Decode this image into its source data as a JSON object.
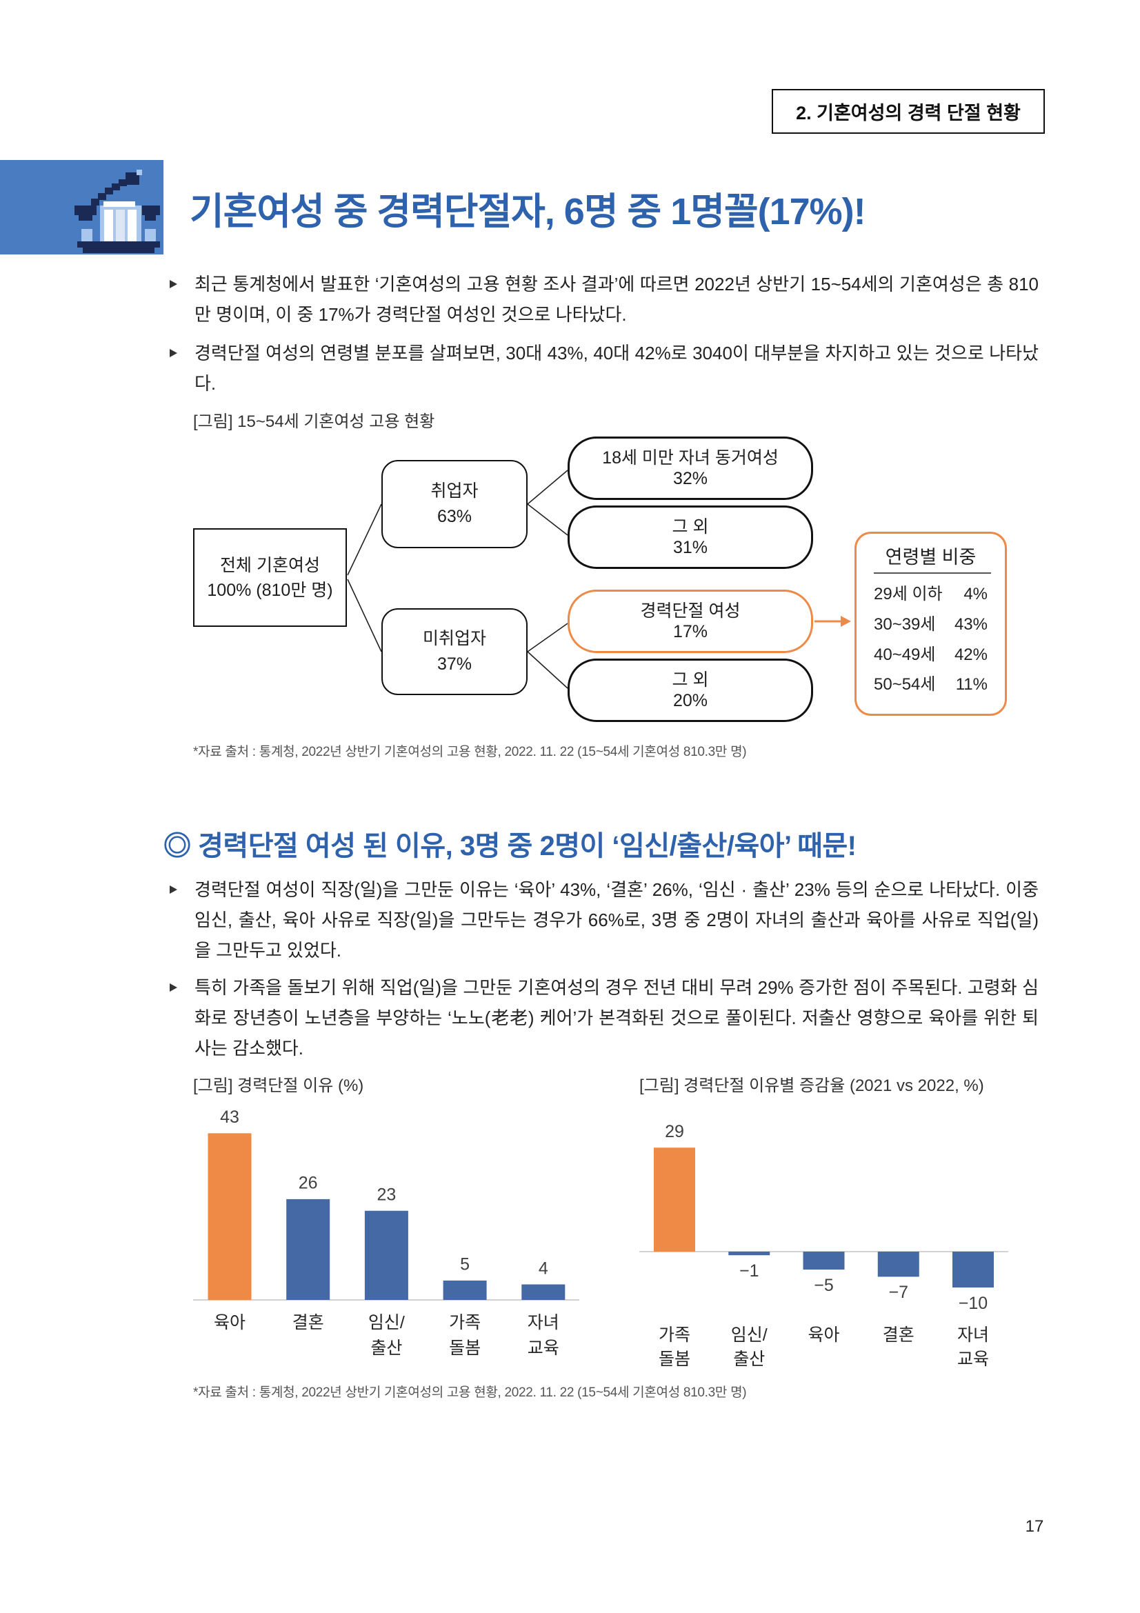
{
  "section_tag": "2. 기혼여성의 경력 단절 현황",
  "header_icon": "chart-growth-icon",
  "colors": {
    "title_blue": "#2f62ac",
    "bar_blue": "#4569a5",
    "accent_orange": "#ef8a46",
    "icon_block_blue": "#4a7cc2"
  },
  "title": "기혼여성 중 경력단절자, 6명 중 1명꼴(17%)!",
  "section1": {
    "bullets": [
      "최근 통계청에서 발표한 ‘기혼여성의 고용 현황 조사 결과’에 따르면 2022년 상반기 15~54세의 기혼여성은 총 810만 명이며, 이 중 17%가 경력단절 여성인 것으로 나타났다.",
      "경력단절 여성의 연령별 분포를 살펴보면, 30대 43%, 40대 42%로 3040이 대부분을 차지하고 있는 것으로 나타났다."
    ]
  },
  "figure1": {
    "caption": "[그림] 15~54세 기혼여성 고용 현황",
    "root": {
      "label": "전체 기혼여성",
      "value": "100% (810만 명)"
    },
    "employed": {
      "label": "취업자",
      "value": "63%"
    },
    "unemployed": {
      "label": "미취업자",
      "value": "37%"
    },
    "employed_children": {
      "label": "18세 미만 자녀 동거여성",
      "value": "32%"
    },
    "employed_other": {
      "label": "그 외",
      "value": "31%"
    },
    "career_break": {
      "label": "경력단절 여성",
      "value": "17%"
    },
    "unemployed_other": {
      "label": "그 외",
      "value": "20%"
    },
    "age_box": {
      "title": "연령별 비중",
      "rows": [
        {
          "age": "29세 이하",
          "share": "4%"
        },
        {
          "age": "30~39세",
          "share": "43%"
        },
        {
          "age": "40~49세",
          "share": "42%"
        },
        {
          "age": "50~54세",
          "share": "11%"
        }
      ]
    },
    "source": "*자료 출처 : 통계청, 2022년 상반기 기혼여성의 고용 현황, 2022. 11. 22 (15~54세 기혼여성 810.3만 명)"
  },
  "section2": {
    "heading": "◎ 경력단절 여성 된 이유, 3명 중 2명이 ‘임신/출산/육아’ 때문!",
    "bullets": [
      "경력단절 여성이 직장(일)을 그만둔 이유는 ‘육아’ 43%, ‘결혼’ 26%, ‘임신 · 출산’ 23% 등의 순으로 나타났다. 이중 임신, 출산, 육아 사유로 직장(일)을 그만두는 경우가 66%로, 3명 중 2명이 자녀의 출산과 육아를 사유로 직업(일)을 그만두고 있었다.",
      "특히 가족을 돌보기 위해 직업(일)을 그만둔 기혼여성의 경우 전년 대비 무려 29% 증가한 점이 주목된다. 고령화 심화로 장년층이 노년층을 부양하는 ‘노노(老老) 케어’가 본격화된 것으로 풀이된다. 저출산 영향으로 육아를 위한 퇴사는 감소했다."
    ],
    "source": "*자료 출처 : 통계청, 2022년 상반기 기혼여성의 고용 현황, 2022. 11. 22 (15~54세 기혼여성 810.3만 명)"
  },
  "chart_data": [
    {
      "type": "bar",
      "title": "[그림] 경력단절 이유 (%)",
      "categories": [
        "육아",
        "결혼",
        "임신/\n출산",
        "가족\n돌봄",
        "자녀\n교육"
      ],
      "values": [
        43,
        26,
        23,
        5,
        4
      ],
      "highlight_index": 0,
      "colors": {
        "highlight": "#ef8a46",
        "bar": "#4569a5"
      },
      "xlabel": "",
      "ylabel": "",
      "ylim": [
        0,
        50
      ],
      "grid": false
    },
    {
      "type": "bar",
      "title": "[그림] 경력단절 이유별 증감율 (2021 vs 2022, %)",
      "categories": [
        "가족\n돌봄",
        "임신/\n출산",
        "육아",
        "결혼",
        "자녀\n교육"
      ],
      "values": [
        29,
        -1,
        -5,
        -7,
        -10
      ],
      "highlight_index": 0,
      "colors": {
        "highlight": "#ef8a46",
        "bar": "#4569a5"
      },
      "xlabel": "",
      "ylabel": "",
      "ylim": [
        -15,
        35
      ],
      "grid": false
    }
  ],
  "page_number": "17"
}
